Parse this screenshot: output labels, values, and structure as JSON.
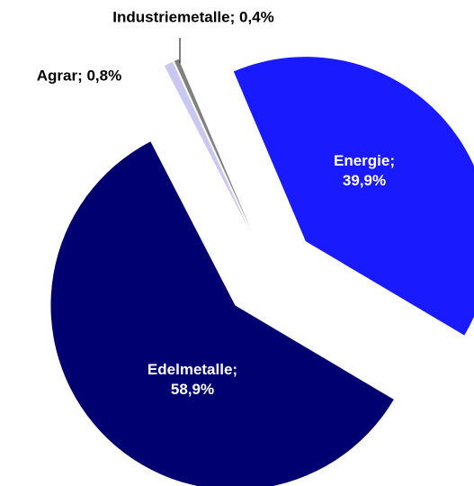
{
  "chart_data": {
    "type": "pie",
    "values": [
      39.9,
      58.9,
      0.8,
      0.4
    ],
    "value_labels": [
      "Energie; 39,9%",
      "Edelmetalle; 58,9%",
      "Agrar; 0,8%",
      "Industriemetalle; 0,4%"
    ],
    "colors": [
      "#1a1aff",
      "#000070",
      "#c8c8f2",
      "#808080"
    ],
    "start_angle": -23
  }
}
